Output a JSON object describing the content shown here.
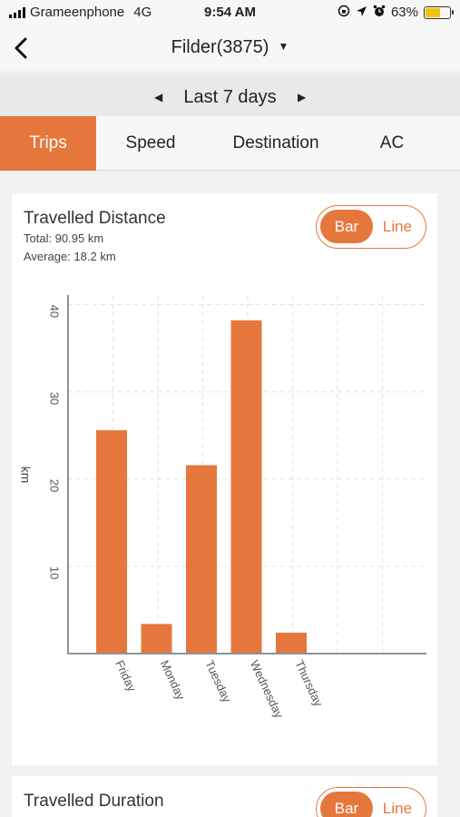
{
  "status_bar": {
    "carrier": "Grameenphone",
    "network": "4G",
    "time": "9:54 AM",
    "battery_percent": "63%",
    "battery_level": 0.63,
    "icons": [
      "screen-lock-rotation-icon",
      "location-arrow-icon",
      "alarm-icon"
    ]
  },
  "nav": {
    "title": "Filder(3875)"
  },
  "period": {
    "label": "Last 7 days"
  },
  "tabs": [
    {
      "label": "Trips",
      "active": true
    },
    {
      "label": "Speed",
      "active": false
    },
    {
      "label": "Destination",
      "active": false
    },
    {
      "label": "AC",
      "active": false
    }
  ],
  "distance_card": {
    "title": "Travelled Distance",
    "total": "Total: 90.95 km",
    "average": "Average: 18.2 km",
    "toggle": {
      "bar": "Bar",
      "line": "Line",
      "selected": "Bar"
    }
  },
  "duration_card": {
    "title": "Travelled Duration",
    "toggle": {
      "bar": "Bar",
      "line": "Line",
      "selected": "Bar"
    }
  },
  "colors": {
    "accent": "#e6773c"
  },
  "chart_data": {
    "type": "bar",
    "categories": [
      "Friday",
      "Monday",
      "Tuesday",
      "Wednesday",
      "Thursday"
    ],
    "values": [
      25.6,
      3.4,
      21.6,
      38.2,
      2.4
    ],
    "ylabel": "km",
    "yticks": [
      "10",
      "20",
      "30",
      "40"
    ],
    "ylim": [
      0,
      41
    ],
    "grid": true,
    "color": "#e6773c"
  }
}
